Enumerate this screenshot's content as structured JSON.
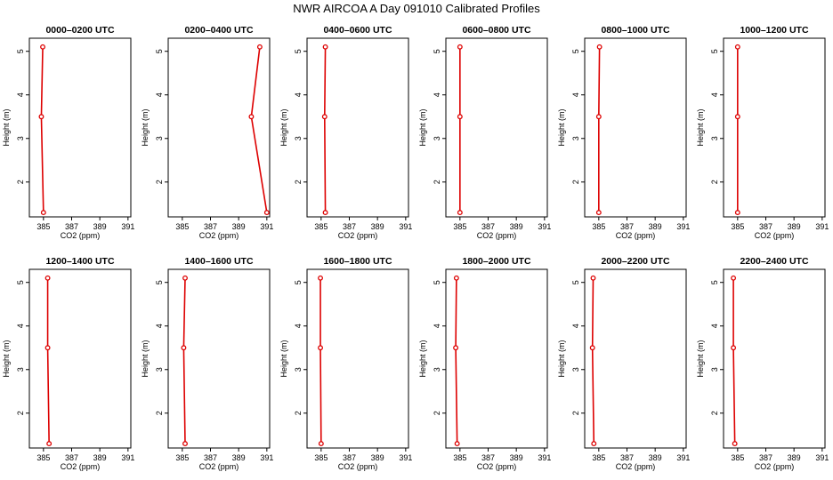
{
  "title": "NWR AIRCOA A  Day 091010  Calibrated Profiles",
  "chart_data": {
    "type": "line",
    "layout": "2x6 grid of small-multiple profile panels",
    "xlabel": "CO2 (ppm)",
    "ylabel": "Height (m)",
    "xlim": [
      384,
      391.2
    ],
    "ylim": [
      1.2,
      5.3
    ],
    "xticks": [
      "385",
      "387",
      "389",
      "391"
    ],
    "yticks": [
      "2",
      "3",
      "4",
      "5"
    ],
    "heights": [
      1.3,
      3.5,
      5.1
    ],
    "line_color": "#dd0000",
    "marker_color": "#dd0000",
    "panels": [
      {
        "title": "0000–0200 UTC",
        "co2": [
          385.0,
          384.85,
          384.95
        ]
      },
      {
        "title": "0200–0400 UTC",
        "co2": [
          391.0,
          389.9,
          390.5
        ]
      },
      {
        "title": "0400–0600 UTC",
        "co2": [
          385.3,
          385.25,
          385.3
        ]
      },
      {
        "title": "0600–0800 UTC",
        "co2": [
          385.0,
          385.0,
          385.0
        ]
      },
      {
        "title": "0800–1000 UTC",
        "co2": [
          385.0,
          385.0,
          385.05
        ]
      },
      {
        "title": "1000–1200 UTC",
        "co2": [
          385.0,
          385.0,
          385.0
        ]
      },
      {
        "title": "1200–1400 UTC",
        "co2": [
          385.4,
          385.3,
          385.3
        ]
      },
      {
        "title": "1400–1600 UTC",
        "co2": [
          385.2,
          385.1,
          385.2
        ]
      },
      {
        "title": "1600–1800 UTC",
        "co2": [
          385.0,
          384.95,
          384.95
        ]
      },
      {
        "title": "1800–2000 UTC",
        "co2": [
          384.8,
          384.7,
          384.75
        ]
      },
      {
        "title": "2000–2200 UTC",
        "co2": [
          384.65,
          384.55,
          384.6
        ]
      },
      {
        "title": "2200–2400 UTC",
        "co2": [
          384.8,
          384.7,
          384.7
        ]
      }
    ]
  }
}
